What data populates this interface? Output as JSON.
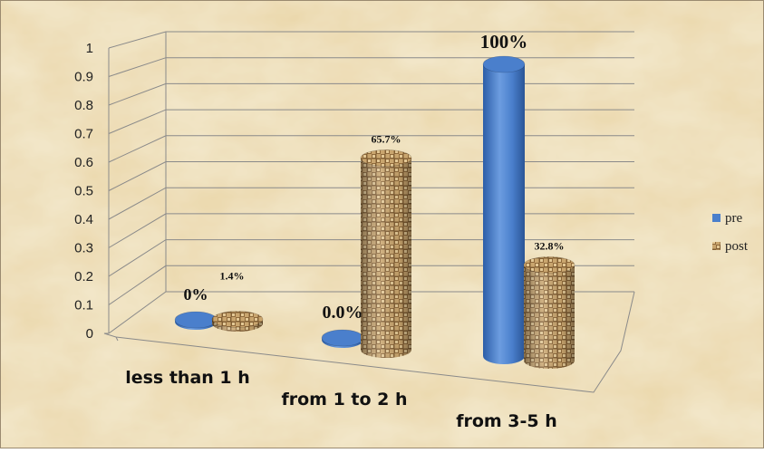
{
  "colors": {
    "pre": "#4a7fcc",
    "post_base": "#b8915a",
    "background": "#ecdcb6",
    "grid": "#8a8a8a"
  },
  "chart_data": {
    "type": "bar",
    "style": "3d-cylinder",
    "categories": [
      "less than 1 h",
      "from 1 to 2 h",
      "from 3-5 h"
    ],
    "series": [
      {
        "name": "pre",
        "values": [
          0,
          0,
          1
        ],
        "labels": [
          "0%",
          "0.0%",
          "100%"
        ]
      },
      {
        "name": "post",
        "values": [
          0.014,
          0.657,
          0.328
        ],
        "labels": [
          "1.4%",
          "65.7%",
          "32.8%"
        ]
      }
    ],
    "yticks": [
      "0",
      "0.1",
      "0.2",
      "0.3",
      "0.4",
      "0.5",
      "0.6",
      "0.7",
      "0.8",
      "0.9",
      "1"
    ],
    "ylim": [
      0,
      1
    ],
    "grid": true,
    "legend_position": "right"
  }
}
